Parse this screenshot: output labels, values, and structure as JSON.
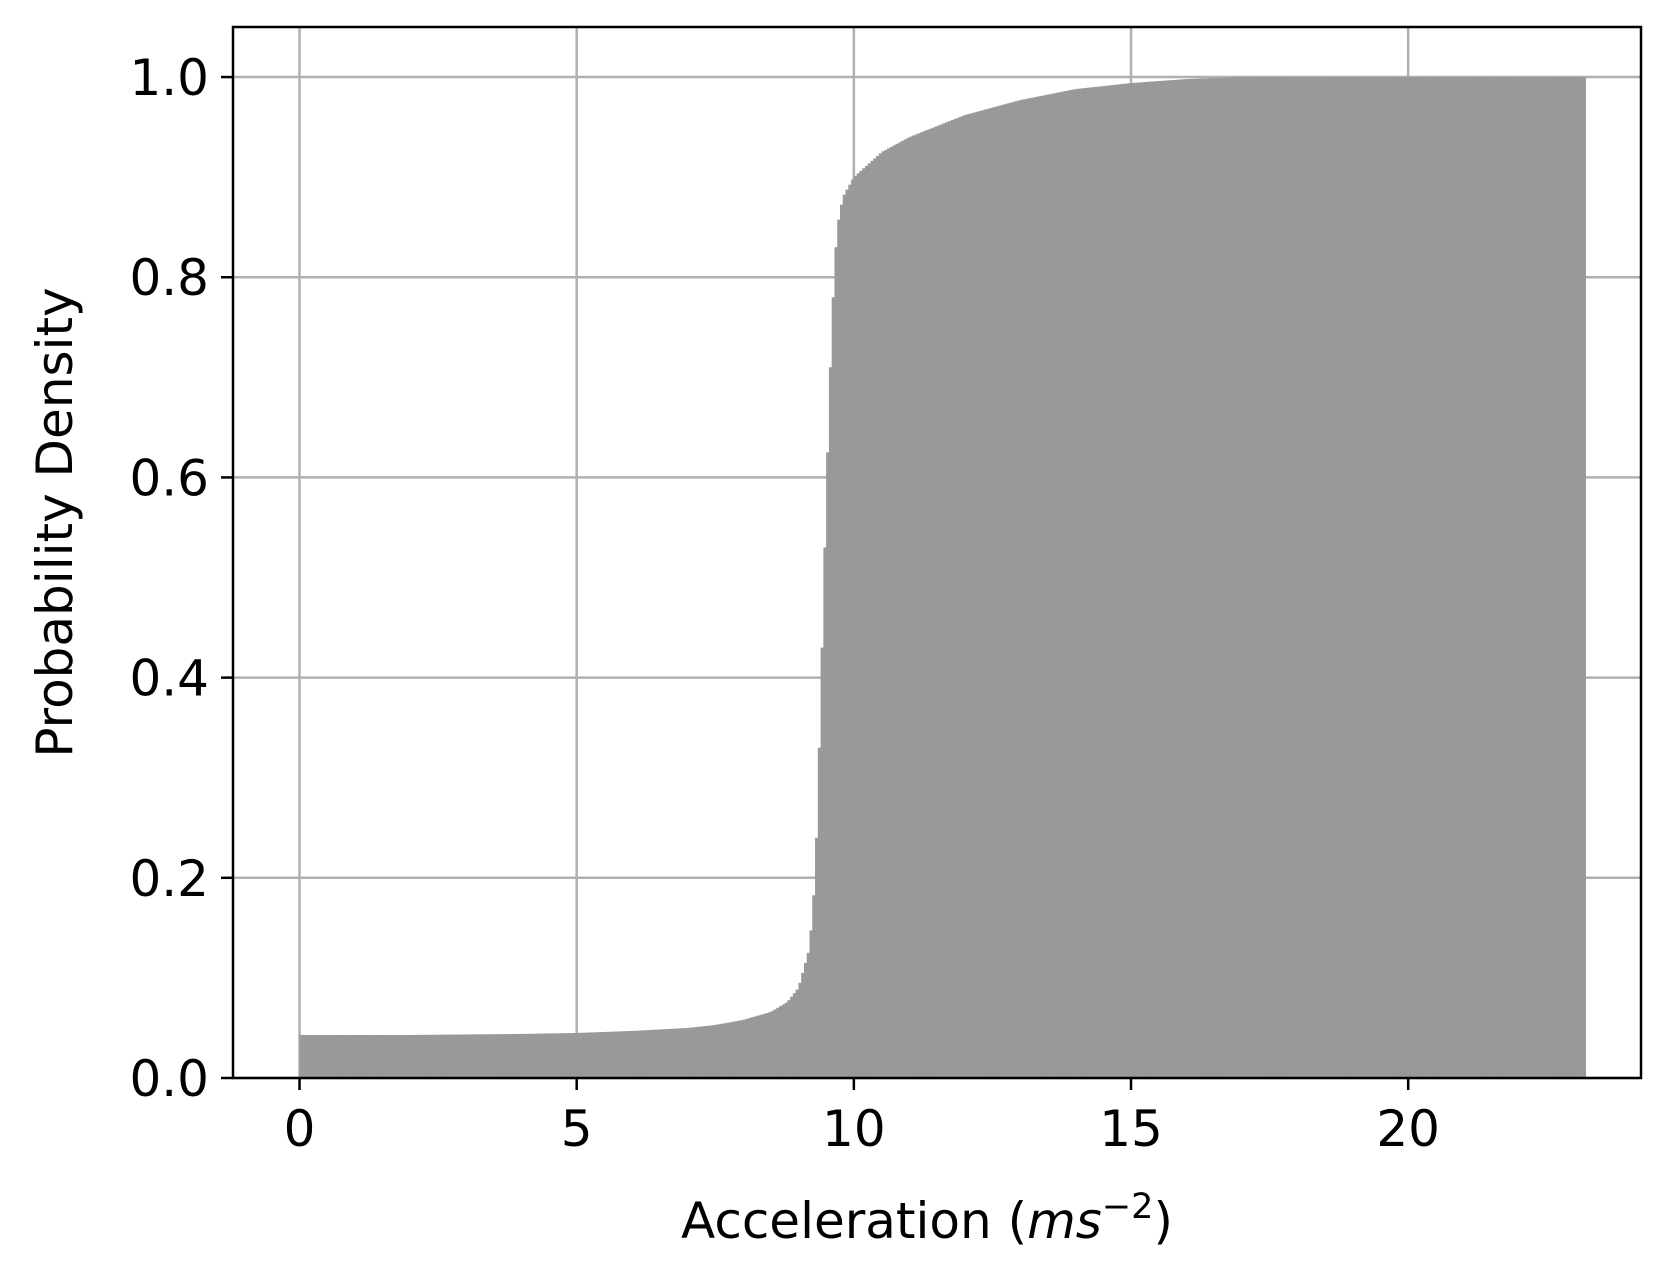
{
  "chart_data": {
    "type": "bar",
    "title": "",
    "xlabel_main": "Acceleration (",
    "xlabel_unit": "ms",
    "xlabel_exp": "−2",
    "xlabel_close": ")",
    "ylabel": "Probability Density",
    "xlim": [
      -1.2,
      24.2
    ],
    "ylim": [
      0,
      1.05
    ],
    "grid": true,
    "bar_color": "#999999",
    "x_ticks": [
      0,
      5,
      10,
      15,
      20
    ],
    "x_tick_labels": [
      "0",
      "5",
      "10",
      "15",
      "20"
    ],
    "y_ticks": [
      0.0,
      0.2,
      0.4,
      0.6,
      0.8,
      1.0
    ],
    "y_tick_labels": [
      "0.0",
      "0.2",
      "0.4",
      "0.6",
      "0.8",
      "1.0"
    ],
    "bin_range": [
      0,
      23.2
    ],
    "curve_points": [
      [
        0.0,
        0.043
      ],
      [
        2.0,
        0.043
      ],
      [
        4.0,
        0.044
      ],
      [
        5.0,
        0.045
      ],
      [
        6.0,
        0.047
      ],
      [
        7.0,
        0.05
      ],
      [
        7.5,
        0.053
      ],
      [
        8.0,
        0.058
      ],
      [
        8.5,
        0.066
      ],
      [
        8.8,
        0.076
      ],
      [
        9.0,
        0.09
      ],
      [
        9.2,
        0.13
      ],
      [
        9.3,
        0.2
      ],
      [
        9.35,
        0.28
      ],
      [
        9.4,
        0.38
      ],
      [
        9.45,
        0.48
      ],
      [
        9.5,
        0.58
      ],
      [
        9.55,
        0.67
      ],
      [
        9.6,
        0.75
      ],
      [
        9.65,
        0.81
      ],
      [
        9.7,
        0.85
      ],
      [
        9.8,
        0.88
      ],
      [
        10.0,
        0.9
      ],
      [
        10.5,
        0.925
      ],
      [
        11.0,
        0.94
      ],
      [
        12.0,
        0.962
      ],
      [
        13.0,
        0.977
      ],
      [
        14.0,
        0.988
      ],
      [
        15.0,
        0.994
      ],
      [
        16.0,
        0.998
      ],
      [
        17.0,
        1.0
      ],
      [
        20.0,
        1.0
      ],
      [
        23.2,
        1.0
      ]
    ]
  }
}
